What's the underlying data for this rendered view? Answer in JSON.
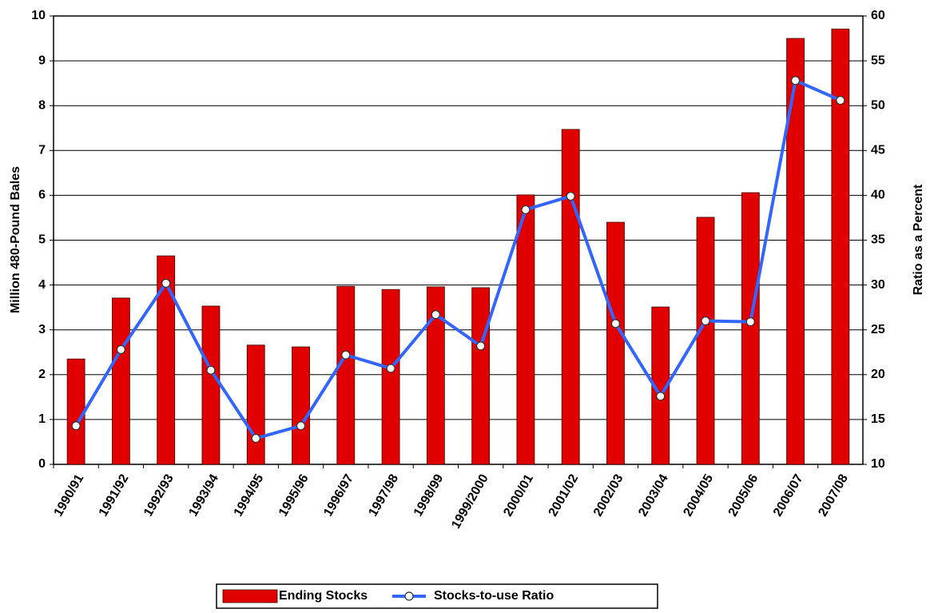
{
  "chart_data": {
    "type": "bar",
    "categories": [
      "1990/91",
      "1991/92",
      "1992/93",
      "1993/94",
      "1994/95",
      "1995/96",
      "1996/97",
      "1997/98",
      "1998/99",
      "1999/2000",
      "2000/01",
      "2001/02",
      "2002/03",
      "2003/04",
      "2004/05",
      "2005/06",
      "2006/07",
      "2007/08"
    ],
    "series": [
      {
        "name": "Ending Stocks",
        "type": "bar",
        "color": "#e00000",
        "values": [
          2.35,
          3.71,
          4.65,
          3.53,
          2.66,
          2.62,
          3.97,
          3.9,
          3.96,
          3.94,
          6.01,
          7.47,
          5.4,
          3.51,
          5.51,
          6.06,
          9.5,
          9.71
        ]
      },
      {
        "name": "Stocks-to-use Ratio",
        "type": "line",
        "axis": "y2",
        "color": "#3366ff",
        "values": [
          14.3,
          22.8,
          30.2,
          20.5,
          12.9,
          14.3,
          22.2,
          20.7,
          26.7,
          23.2,
          38.4,
          39.9,
          25.7,
          17.6,
          26.0,
          25.9,
          52.8,
          50.6
        ]
      }
    ],
    "y_label": "Million 480-Pound Bales",
    "y2_label": "Ratio as a Percent",
    "ylim": [
      0,
      10
    ],
    "yticks": [
      0,
      1,
      2,
      3,
      4,
      5,
      6,
      7,
      8,
      9,
      10
    ],
    "y2lim": [
      10,
      60
    ],
    "y2ticks": [
      10,
      15,
      20,
      25,
      30,
      35,
      40,
      45,
      50,
      55,
      60
    ],
    "grid": true
  }
}
